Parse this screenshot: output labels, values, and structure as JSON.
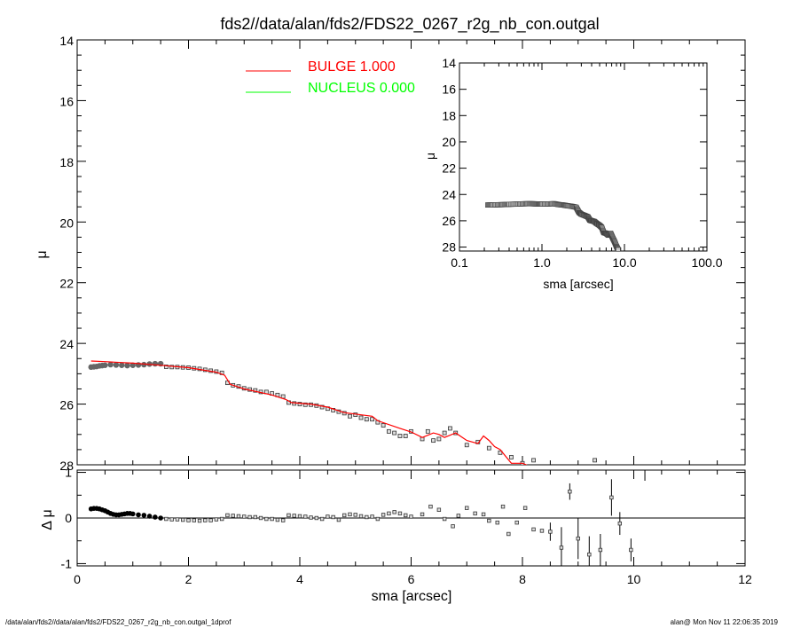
{
  "chart_data": [
    {
      "type": "scatter",
      "title": "fds2//data/alan/fds2/FDS22_0267_r2g_nb_con.outgal",
      "ylabel": "μ",
      "xlim": [
        0,
        12
      ],
      "ylim": [
        28,
        14
      ],
      "y_ticks": [
        "14",
        "16",
        "18",
        "20",
        "22",
        "24",
        "26",
        "28"
      ],
      "legend_placement": "top-center",
      "legend": [
        {
          "name": "BULGE 1.000",
          "color": "#ff0000"
        },
        {
          "name": "NUCLEUS 0.000",
          "color": "#00ff00"
        }
      ],
      "series": [
        {
          "name": "data",
          "color": "#555555",
          "points": [
            [
              0.25,
              24.78
            ],
            [
              0.3,
              24.77
            ],
            [
              0.35,
              24.76
            ],
            [
              0.4,
              24.74
            ],
            [
              0.45,
              24.73
            ],
            [
              0.5,
              24.72
            ],
            [
              0.6,
              24.7
            ],
            [
              0.7,
              24.71
            ],
            [
              0.8,
              24.72
            ],
            [
              0.9,
              24.73
            ],
            [
              1.0,
              24.72
            ],
            [
              1.1,
              24.71
            ],
            [
              1.2,
              24.7
            ],
            [
              1.3,
              24.68
            ],
            [
              1.4,
              24.67
            ],
            [
              1.5,
              24.67
            ],
            [
              1.6,
              24.77
            ],
            [
              1.7,
              24.78
            ],
            [
              1.8,
              24.78
            ],
            [
              1.9,
              24.79
            ],
            [
              2.0,
              24.8
            ],
            [
              2.1,
              24.82
            ],
            [
              2.2,
              24.84
            ],
            [
              2.3,
              24.87
            ],
            [
              2.4,
              24.9
            ],
            [
              2.5,
              24.93
            ],
            [
              2.6,
              24.97
            ],
            [
              2.7,
              25.3
            ],
            [
              2.8,
              25.38
            ],
            [
              2.9,
              25.42
            ],
            [
              3.0,
              25.48
            ],
            [
              3.1,
              25.52
            ],
            [
              3.2,
              25.55
            ],
            [
              3.3,
              25.6
            ],
            [
              3.4,
              25.6
            ],
            [
              3.5,
              25.65
            ],
            [
              3.6,
              25.7
            ],
            [
              3.7,
              25.75
            ],
            [
              3.8,
              25.95
            ],
            [
              3.9,
              25.98
            ],
            [
              4.0,
              26.0
            ],
            [
              4.1,
              26.02
            ],
            [
              4.2,
              26.02
            ],
            [
              4.3,
              26.05
            ],
            [
              4.4,
              26.1
            ],
            [
              4.5,
              26.15
            ],
            [
              4.6,
              26.2
            ],
            [
              4.7,
              26.25
            ],
            [
              4.8,
              26.3
            ],
            [
              4.9,
              26.4
            ],
            [
              5.0,
              26.35
            ],
            [
              5.1,
              26.45
            ],
            [
              5.2,
              26.5
            ],
            [
              5.3,
              26.5
            ],
            [
              5.4,
              26.6
            ],
            [
              5.5,
              26.7
            ],
            [
              5.6,
              26.9
            ],
            [
              5.7,
              26.95
            ],
            [
              5.8,
              27.05
            ],
            [
              5.9,
              27.05
            ],
            [
              6.0,
              26.9
            ],
            [
              6.2,
              27.15
            ],
            [
              6.3,
              26.9
            ],
            [
              6.4,
              27.2
            ],
            [
              6.5,
              27.15
            ],
            [
              6.6,
              26.95
            ],
            [
              6.7,
              26.8
            ],
            [
              6.8,
              26.95
            ],
            [
              7.0,
              27.35
            ],
            [
              7.2,
              27.25
            ],
            [
              7.4,
              27.45
            ],
            [
              7.6,
              27.6
            ],
            [
              7.8,
              27.75
            ],
            [
              8.0,
              27.95
            ],
            [
              8.2,
              27.85
            ],
            [
              9.3,
              27.85
            ]
          ]
        },
        {
          "name": "BULGE 1.000",
          "color": "#ff0000",
          "points": [
            [
              0.25,
              24.58
            ],
            [
              0.5,
              24.6
            ],
            [
              1.0,
              24.65
            ],
            [
              1.5,
              24.72
            ],
            [
              2.0,
              24.8
            ],
            [
              2.5,
              24.95
            ],
            [
              2.65,
              25.05
            ],
            [
              2.75,
              25.35
            ],
            [
              3.0,
              25.5
            ],
            [
              3.5,
              25.7
            ],
            [
              3.75,
              25.85
            ],
            [
              3.85,
              25.95
            ],
            [
              4.2,
              26.0
            ],
            [
              4.5,
              26.1
            ],
            [
              4.8,
              26.28
            ],
            [
              5.3,
              26.4
            ],
            [
              5.4,
              26.55
            ],
            [
              5.8,
              26.8
            ],
            [
              6.0,
              26.92
            ],
            [
              6.2,
              27.1
            ],
            [
              6.4,
              26.95
            ],
            [
              6.5,
              27.0
            ],
            [
              6.6,
              27.1
            ],
            [
              6.8,
              26.95
            ],
            [
              7.0,
              27.2
            ],
            [
              7.2,
              27.3
            ],
            [
              7.3,
              27.05
            ],
            [
              7.4,
              27.2
            ],
            [
              7.5,
              27.4
            ],
            [
              7.6,
              27.5
            ],
            [
              7.8,
              27.95
            ],
            [
              8.0,
              27.95
            ],
            [
              8.2,
              28.1
            ]
          ]
        },
        {
          "name": "NUCLEUS 0.000",
          "color": "#00ff00",
          "points": []
        }
      ]
    },
    {
      "type": "scatter",
      "xlabel": "sma [arcsec]",
      "ylabel": "Δ μ",
      "xlim": [
        0,
        12
      ],
      "ylim": [
        -1.05,
        1.05
      ],
      "x_ticks": [
        "0",
        "2",
        "4",
        "6",
        "8",
        "10",
        "12"
      ],
      "y_ticks": [
        "1",
        "0",
        "-1"
      ],
      "points": [
        [
          0.25,
          0.2
        ],
        [
          0.3,
          0.21
        ],
        [
          0.35,
          0.21
        ],
        [
          0.4,
          0.2
        ],
        [
          0.45,
          0.18
        ],
        [
          0.5,
          0.16
        ],
        [
          0.55,
          0.13
        ],
        [
          0.6,
          0.1
        ],
        [
          0.65,
          0.08
        ],
        [
          0.7,
          0.07
        ],
        [
          0.75,
          0.07
        ],
        [
          0.8,
          0.08
        ],
        [
          0.85,
          0.09
        ],
        [
          0.9,
          0.1
        ],
        [
          0.95,
          0.1
        ],
        [
          1.0,
          0.09
        ],
        [
          1.1,
          0.07
        ],
        [
          1.2,
          0.06
        ],
        [
          1.3,
          0.04
        ],
        [
          1.4,
          0.02
        ],
        [
          1.5,
          0.0
        ],
        [
          1.6,
          -0.02
        ],
        [
          1.7,
          -0.03
        ],
        [
          1.8,
          -0.03
        ],
        [
          1.9,
          -0.04
        ],
        [
          2.0,
          -0.05
        ],
        [
          2.1,
          -0.05
        ],
        [
          2.2,
          -0.06
        ],
        [
          2.3,
          -0.05
        ],
        [
          2.4,
          -0.05
        ],
        [
          2.5,
          -0.03
        ],
        [
          2.6,
          -0.02
        ],
        [
          2.7,
          0.06
        ],
        [
          2.8,
          0.05
        ],
        [
          2.9,
          0.04
        ],
        [
          3.0,
          0.03
        ],
        [
          3.1,
          0.02
        ],
        [
          3.2,
          0.02
        ],
        [
          3.3,
          0.0
        ],
        [
          3.4,
          -0.02
        ],
        [
          3.5,
          -0.02
        ],
        [
          3.6,
          -0.04
        ],
        [
          3.7,
          -0.05
        ],
        [
          3.8,
          0.06
        ],
        [
          3.9,
          0.05
        ],
        [
          4.0,
          0.04
        ],
        [
          4.1,
          0.03
        ],
        [
          4.2,
          0.01
        ],
        [
          4.3,
          0.0
        ],
        [
          4.4,
          -0.02
        ],
        [
          4.5,
          0.03
        ],
        [
          4.6,
          0.02
        ],
        [
          4.7,
          -0.04
        ],
        [
          4.8,
          0.06
        ],
        [
          4.9,
          0.08
        ],
        [
          5.0,
          0.07
        ],
        [
          5.1,
          0.04
        ],
        [
          5.2,
          0.02
        ],
        [
          5.3,
          0.03
        ],
        [
          5.4,
          -0.02
        ],
        [
          5.5,
          0.07
        ],
        [
          5.6,
          0.1
        ],
        [
          5.7,
          0.13
        ],
        [
          5.8,
          0.1
        ],
        [
          5.9,
          0.06
        ],
        [
          6.0,
          0.03
        ],
        [
          6.2,
          0.08
        ],
        [
          6.35,
          0.25
        ],
        [
          6.5,
          0.18
        ],
        [
          6.6,
          -0.02
        ],
        [
          6.75,
          -0.18
        ],
        [
          6.85,
          0.05
        ],
        [
          7.0,
          0.22
        ],
        [
          7.15,
          0.1
        ],
        [
          7.3,
          0.08
        ],
        [
          7.4,
          -0.06
        ],
        [
          7.55,
          -0.1
        ],
        [
          7.65,
          0.25
        ],
        [
          7.75,
          -0.35
        ],
        [
          7.9,
          -0.1
        ],
        [
          8.05,
          0.22
        ],
        [
          8.2,
          -0.25
        ],
        [
          8.35,
          -0.28
        ],
        [
          8.5,
          -0.3
        ],
        [
          8.7,
          -0.65
        ],
        [
          8.85,
          0.58
        ],
        [
          9.0,
          -0.45
        ],
        [
          9.2,
          -0.8
        ],
        [
          9.4,
          -0.7
        ],
        [
          9.6,
          0.45
        ],
        [
          9.75,
          -0.12
        ],
        [
          9.95,
          -0.7
        ]
      ],
      "errors": [
        [
          8.5,
          0.2
        ],
        [
          8.7,
          0.45
        ],
        [
          8.85,
          0.18
        ],
        [
          9.0,
          0.45
        ],
        [
          9.2,
          0.4
        ],
        [
          9.4,
          0.35
        ],
        [
          9.6,
          0.4
        ],
        [
          9.75,
          0.25
        ],
        [
          9.95,
          0.25
        ]
      ]
    },
    {
      "type": "scatter",
      "xlabel": "sma [arcsec]",
      "ylabel": "μ",
      "xscale": "log",
      "xlim": [
        0.1,
        100.0
      ],
      "ylim": [
        28.3,
        14
      ],
      "x_ticks": [
        "0.1",
        "1.0",
        "10.0",
        "100.0"
      ],
      "y_ticks": [
        "14",
        "16",
        "18",
        "20",
        "22",
        "24",
        "26",
        "28"
      ],
      "points": [
        [
          0.22,
          24.8
        ],
        [
          0.25,
          24.8
        ],
        [
          0.3,
          24.78
        ],
        [
          0.35,
          24.77
        ],
        [
          0.4,
          24.75
        ],
        [
          0.5,
          24.73
        ],
        [
          0.6,
          24.71
        ],
        [
          0.7,
          24.7
        ],
        [
          0.8,
          24.71
        ],
        [
          0.9,
          24.72
        ],
        [
          1.0,
          24.73
        ],
        [
          1.2,
          24.72
        ],
        [
          1.4,
          24.7
        ],
        [
          1.6,
          24.77
        ],
        [
          1.8,
          24.8
        ],
        [
          2.0,
          24.85
        ],
        [
          2.3,
          24.9
        ],
        [
          2.6,
          24.97
        ],
        [
          2.8,
          25.35
        ],
        [
          3.0,
          25.5
        ],
        [
          3.3,
          25.6
        ],
        [
          3.6,
          25.7
        ],
        [
          3.8,
          25.95
        ],
        [
          4.0,
          26.0
        ],
        [
          4.3,
          26.05
        ],
        [
          4.6,
          26.2
        ],
        [
          5.0,
          26.35
        ],
        [
          5.3,
          26.5
        ],
        [
          5.6,
          26.9
        ],
        [
          6.0,
          26.95
        ],
        [
          6.4,
          27.1
        ],
        [
          6.8,
          26.95
        ],
        [
          7.2,
          27.3
        ],
        [
          7.6,
          27.6
        ],
        [
          8.0,
          27.95
        ],
        [
          8.4,
          28.2
        ]
      ]
    }
  ],
  "footer": {
    "left": "/data/alan/fds2//data/alan/fds2/FDS22_0267_r2g_nb_con.outgal_1dprof",
    "right": "alan@  Mon Nov 11 22:06:35 2019"
  }
}
